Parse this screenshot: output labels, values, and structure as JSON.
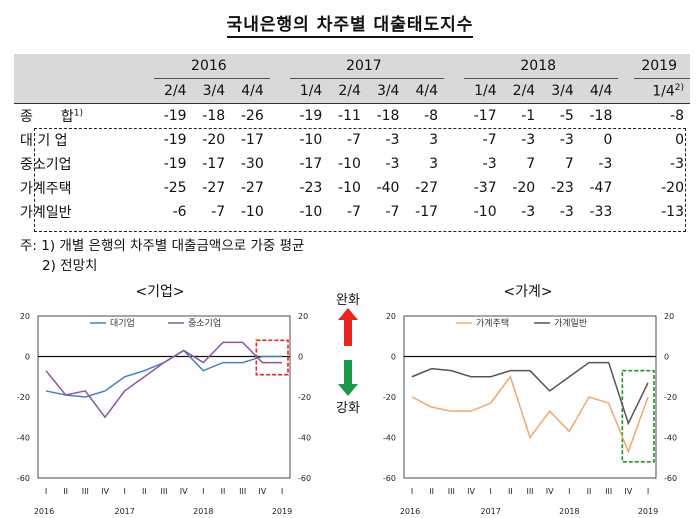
{
  "title": "국내은행의 차주별 대출태도지수",
  "table": {
    "years": [
      "2016",
      "2017",
      "2018",
      "2019"
    ],
    "quarters": [
      "2/4",
      "3/4",
      "4/4",
      "1/4",
      "2/4",
      "3/4",
      "4/4",
      "1/4",
      "2/4",
      "3/4",
      "4/4",
      "1/4"
    ],
    "quarter_note": "2)",
    "rows": [
      {
        "label": "종　　합",
        "note": "1)",
        "values": [
          "-19",
          "-18",
          "-26",
          "-19",
          "-11",
          "-18",
          "-8",
          "-17",
          "-1",
          "-5",
          "-18",
          "-8"
        ]
      },
      {
        "label": "대 기 업",
        "note": "",
        "values": [
          "-19",
          "-20",
          "-17",
          "-10",
          "-7",
          "-3",
          "3",
          "-7",
          "-3",
          "-3",
          "0",
          "0"
        ]
      },
      {
        "label": "중소기업",
        "note": "",
        "values": [
          "-19",
          "-17",
          "-30",
          "-17",
          "-10",
          "-3",
          "3",
          "-3",
          "7",
          "7",
          "-3",
          "-3"
        ]
      },
      {
        "label": "가계주택",
        "note": "",
        "values": [
          "-25",
          "-27",
          "-27",
          "-23",
          "-10",
          "-40",
          "-27",
          "-37",
          "-20",
          "-23",
          "-47",
          "-20"
        ]
      },
      {
        "label": "가계일반",
        "note": "",
        "values": [
          "-6",
          "-7",
          "-10",
          "-10",
          "-7",
          "-7",
          "-17",
          "-10",
          "-3",
          "-3",
          "-33",
          "-13"
        ]
      }
    ]
  },
  "notes": [
    "주: 1) 개별 은행의 차주별 대출금액으로 가중 평균",
    "2) 전망치"
  ],
  "arrows": {
    "up_label": "완화",
    "down_label": "강화",
    "up_color": "#e8251f",
    "down_color": "#1a9a4a"
  },
  "chart_data": [
    {
      "type": "line",
      "title": "<기업>",
      "x": [
        "I",
        "II",
        "III",
        "IV",
        "I",
        "II",
        "III",
        "IV",
        "I",
        "II",
        "III",
        "IV",
        "I"
      ],
      "year_labels": [
        "2016",
        "2017",
        "2018",
        "2019"
      ],
      "ylim": [
        -60,
        20
      ],
      "yticks": [
        20,
        0,
        -20,
        -40,
        -60
      ],
      "series": [
        {
          "name": "대기업",
          "color": "#4a7fc1",
          "values": [
            -17,
            -19,
            -20,
            -17,
            -10,
            -7,
            -3,
            3,
            -7,
            -3,
            -3,
            0,
            0
          ]
        },
        {
          "name": "중소기업",
          "color": "#8a5a9c",
          "values": [
            -7,
            -19,
            -17,
            -30,
            -17,
            -10,
            -3,
            3,
            -3,
            7,
            7,
            -3,
            -3
          ]
        }
      ],
      "highlight": {
        "color": "#e8251f",
        "style": "dashed",
        "from_index": 11,
        "to_index": 12
      }
    },
    {
      "type": "line",
      "title": "<가계>",
      "x": [
        "I",
        "II",
        "III",
        "IV",
        "I",
        "II",
        "III",
        "IV",
        "I",
        "II",
        "III",
        "IV",
        "I"
      ],
      "year_labels": [
        "2016",
        "2017",
        "2018",
        "2019"
      ],
      "ylim": [
        -60,
        20
      ],
      "yticks": [
        20,
        0,
        -20,
        -40,
        -60
      ],
      "series": [
        {
          "name": "가계주택",
          "color": "#f0a870",
          "values": [
            -20,
            -25,
            -27,
            -27,
            -23,
            -10,
            -40,
            -27,
            -37,
            -20,
            -23,
            -47,
            -20
          ]
        },
        {
          "name": "가계일반",
          "color": "#555555",
          "values": [
            -10,
            -6,
            -7,
            -10,
            -10,
            -7,
            -7,
            -17,
            -10,
            -3,
            -3,
            -33,
            -13
          ]
        }
      ],
      "highlight": {
        "color": "#1a9a1a",
        "style": "dashed",
        "from_index": 11,
        "to_index": 12
      }
    }
  ]
}
